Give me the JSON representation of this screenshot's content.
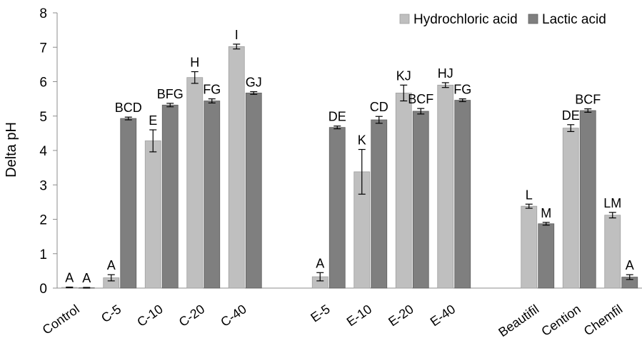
{
  "chart_data": {
    "type": "bar",
    "ylabel": "Delta pH",
    "xlabel": "",
    "ylim": [
      0,
      8
    ],
    "yticks": [
      0,
      1,
      2,
      3,
      4,
      5,
      6,
      7,
      8
    ],
    "grid": false,
    "legend_position": "top-right",
    "categories": [
      "Control",
      "C-5",
      "C-10",
      "C-20",
      "C-40",
      "",
      "E-5",
      "E-10",
      "E-20",
      "E-40",
      "",
      "Beautifil",
      "Cention",
      "Chemfil"
    ],
    "series": [
      {
        "name": "Hydrochloric acid",
        "color": "#bfbfbf",
        "values": [
          0.02,
          0.3,
          4.28,
          6.12,
          7.02,
          null,
          0.33,
          3.38,
          5.67,
          5.9,
          null,
          2.38,
          4.65,
          2.12
        ],
        "errors": [
          0.01,
          0.09,
          0.32,
          0.17,
          0.07,
          null,
          0.12,
          0.65,
          0.23,
          0.07,
          null,
          0.06,
          0.1,
          0.08
        ],
        "letters": [
          "A",
          "A",
          "E",
          "H",
          "I",
          "",
          "A",
          "K",
          "KJ",
          "HJ",
          "",
          "L",
          "DE",
          "LM"
        ]
      },
      {
        "name": "Lactic acid",
        "color": "#7f7f7f",
        "values": [
          0.01,
          4.93,
          5.32,
          5.44,
          5.67,
          null,
          4.67,
          4.89,
          5.14,
          5.46,
          null,
          1.87,
          5.16,
          0.32
        ],
        "errors": [
          0.01,
          0.04,
          0.05,
          0.06,
          0.04,
          null,
          0.04,
          0.1,
          0.08,
          0.04,
          null,
          0.04,
          0.05,
          0.07
        ],
        "letters": [
          "A",
          "BCD",
          "BFG",
          "FG",
          "GJ",
          "",
          "DE",
          "CD",
          "BCF",
          "FG",
          "",
          "M",
          "BCF",
          "A"
        ]
      }
    ]
  }
}
